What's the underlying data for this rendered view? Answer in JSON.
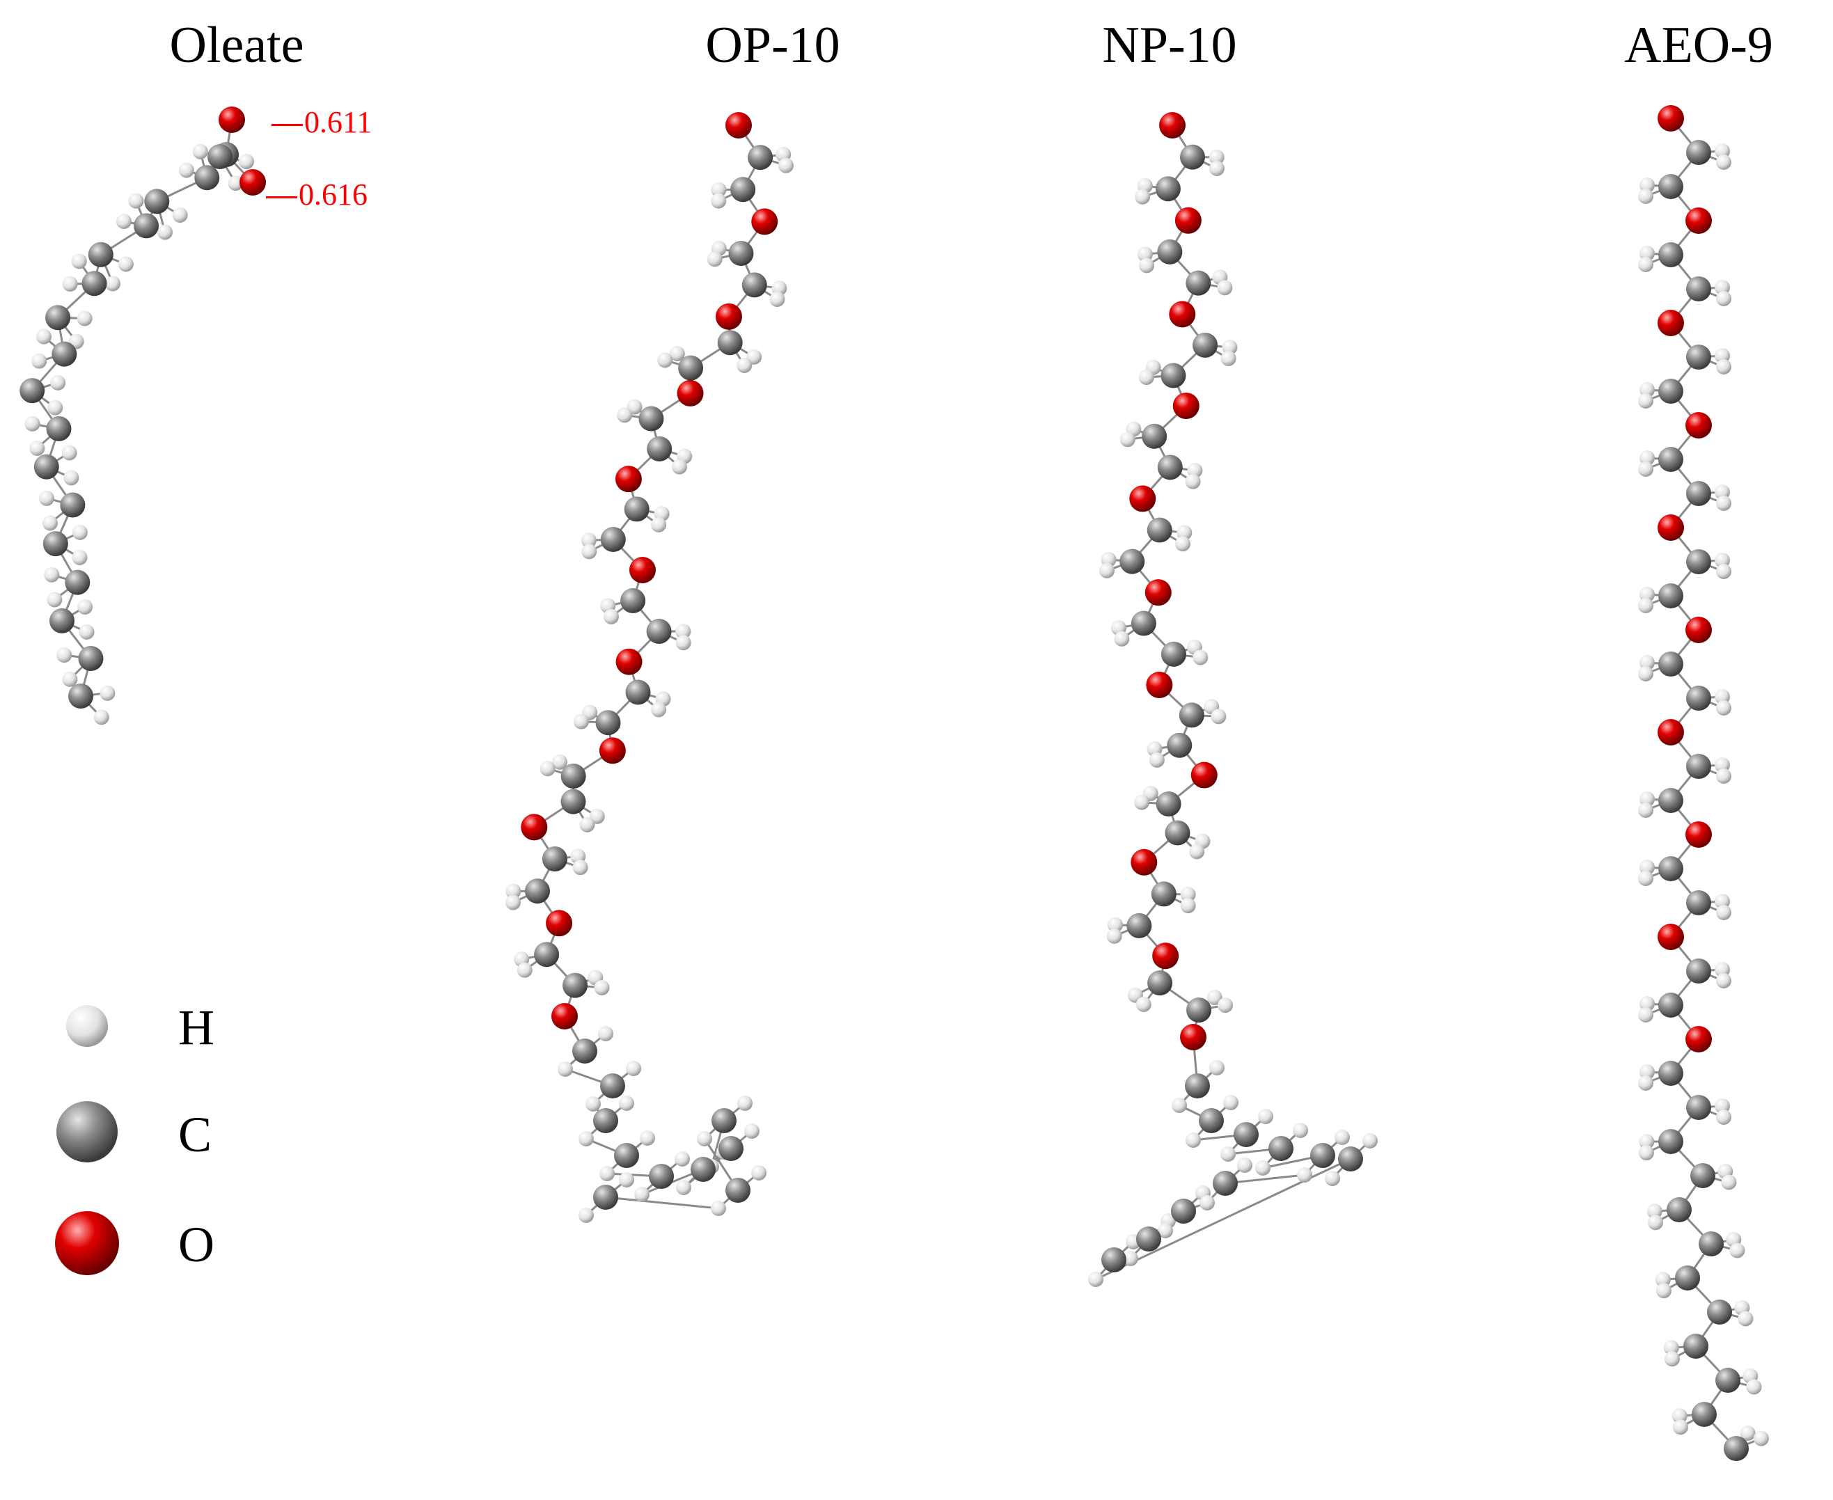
{
  "molecules": [
    {
      "name": "Oleate"
    },
    {
      "name": "OP-10"
    },
    {
      "name": "NP-10"
    },
    {
      "name": "AEO-9"
    }
  ],
  "charge_labels": [
    {
      "text": "0.611",
      "atom": "O1"
    },
    {
      "text": "0.616",
      "atom": "O2"
    }
  ],
  "legend": [
    {
      "element": "H",
      "color": "#d9d9d9"
    },
    {
      "element": "C",
      "color": "#808080"
    },
    {
      "element": "O",
      "color": "#e00000"
    }
  ],
  "colors": {
    "hydrogen": "#d9d9d9",
    "carbon": "#808080",
    "oxygen": "#e00000",
    "charge_text": "#ff0000",
    "bond": "#8a8a8a"
  }
}
